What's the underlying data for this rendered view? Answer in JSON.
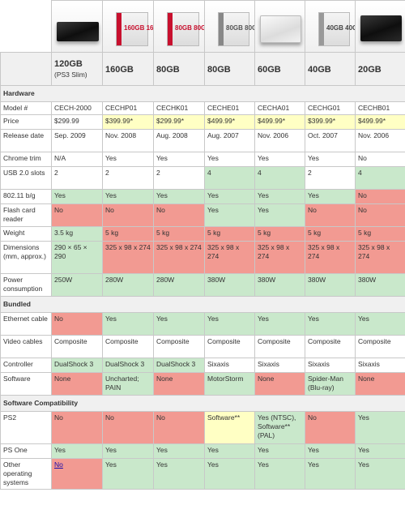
{
  "models": [
    {
      "storage": "120GB",
      "sub": "(PS3 Slim)",
      "box_caption": ""
    },
    {
      "storage": "160GB",
      "sub": "",
      "box_caption": "160GB 160GB"
    },
    {
      "storage": "80GB",
      "sub": "",
      "box_caption": "80GB 80GB"
    },
    {
      "storage": "80GB",
      "sub": "",
      "box_caption": "80GB 80GB"
    },
    {
      "storage": "60GB",
      "sub": "",
      "box_caption": ""
    },
    {
      "storage": "40GB",
      "sub": "",
      "box_caption": "40GB 40GB"
    },
    {
      "storage": "20GB",
      "sub": "",
      "box_caption": ""
    }
  ],
  "sections": {
    "hardware": "Hardware",
    "bundled": "Bundled",
    "software_compat": "Software Compatibility"
  },
  "rows": {
    "model": {
      "label": "Model #",
      "values": [
        "CECH-2000",
        "CECHP01",
        "CECHK01",
        "CECHE01",
        "CECHA01",
        "CECHG01",
        "CECHB01"
      ]
    },
    "price": {
      "label": "Price",
      "values": [
        "$299.99",
        "$399.99*",
        "$299.99*",
        "$499.99*",
        "$499.99*",
        "$399.99*",
        "$499.99*"
      ]
    },
    "release": {
      "label": "Release date",
      "values": [
        "Sep. 2009",
        "Nov. 2008",
        "Aug. 2008",
        "Aug. 2007",
        "Nov. 2006",
        "Oct. 2007",
        "Nov. 2006"
      ]
    },
    "chrome": {
      "label": "Chrome trim",
      "values": [
        "N/A",
        "Yes",
        "Yes",
        "Yes",
        "Yes",
        "Yes",
        "No"
      ]
    },
    "usb": {
      "label": "USB 2.0 slots",
      "values": [
        "2",
        "2",
        "2",
        "4",
        "4",
        "2",
        "4"
      ]
    },
    "wifi": {
      "label": "802.11 b/g",
      "values": [
        "Yes",
        "Yes",
        "Yes",
        "Yes",
        "Yes",
        "Yes",
        "No"
      ]
    },
    "flash": {
      "label": "Flash card reader",
      "values": [
        "No",
        "No",
        "No",
        "Yes",
        "Yes",
        "No",
        "No"
      ]
    },
    "weight": {
      "label": "Weight",
      "values": [
        "3.5 kg",
        "5 kg",
        "5 kg",
        "5 kg",
        "5 kg",
        "5 kg",
        "5 kg"
      ]
    },
    "dimensions": {
      "label": "Dimensions (mm, approx.)",
      "values": [
        "290 × 65 × 290",
        "325 x 98 x 274",
        "325 x 98 x 274",
        "325 x 98 x 274",
        "325 x 98 x 274",
        "325 x 98 x 274",
        "325 x 98 x 274"
      ]
    },
    "power": {
      "label": "Power consumption",
      "values": [
        "250W",
        "280W",
        "280W",
        "380W",
        "380W",
        "380W",
        "380W"
      ]
    },
    "ethernet": {
      "label": "Ethernet cable",
      "values": [
        "No",
        "Yes",
        "Yes",
        "Yes",
        "Yes",
        "Yes",
        "Yes"
      ]
    },
    "video": {
      "label": "Video cables",
      "values": [
        "Composite",
        "Composite",
        "Composite",
        "Composite",
        "Composite",
        "Composite",
        "Composite"
      ]
    },
    "controller": {
      "label": "Controller",
      "values": [
        "DualShock 3",
        "DualShock 3",
        "DualShock 3",
        "Sixaxis",
        "Sixaxis",
        "Sixaxis",
        "Sixaxis"
      ]
    },
    "software": {
      "label": "Software",
      "values": [
        "None",
        "Uncharted; PAIN",
        "None",
        "MotorStorm",
        "None",
        "Spider-Man (Blu-ray)",
        "None"
      ]
    },
    "ps2": {
      "label": "PS2",
      "values": [
        "No",
        "No",
        "No",
        "Software**",
        "Yes (NTSC), Software** (PAL)",
        "No",
        "Yes"
      ]
    },
    "psone": {
      "label": "PS One",
      "values": [
        "Yes",
        "Yes",
        "Yes",
        "Yes",
        "Yes",
        "Yes",
        "Yes"
      ]
    },
    "other_os": {
      "label": "Other operating systems",
      "values": [
        "No",
        "Yes",
        "Yes",
        "Yes",
        "Yes",
        "Yes",
        "Yes"
      ]
    }
  },
  "colors": {
    "yes_green": "#c9e8cb",
    "no_red": "#f29a92",
    "partial_yellow": "#ffffc4",
    "header_gray": "#f0f0f0",
    "link_blue": "#1a0dab"
  },
  "icons": [
    "ps3-slim-console-image",
    "ps3-160gb-box-image",
    "ps3-80gb-box-image",
    "ps3-80gb-box-image",
    "ps3-60gb-console-image",
    "ps3-40gb-box-image",
    "ps3-20gb-console-image"
  ]
}
